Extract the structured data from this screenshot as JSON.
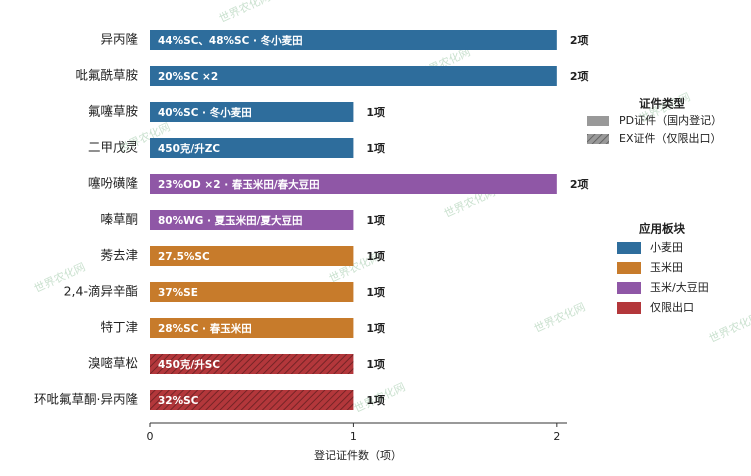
{
  "chart_data": {
    "type": "bar",
    "orientation": "horizontal",
    "categories": [
      "异丙隆",
      "吡氟酰草胺",
      "氟噻草胺",
      "二甲戊灵",
      "噻吩磺隆",
      "嗪草酮",
      "莠去津",
      "2,4-滴异辛酯",
      "特丁津",
      "溴嘧草松",
      "环吡氟草酮·异丙隆"
    ],
    "values": [
      2,
      2,
      1,
      1,
      2,
      1,
      1,
      1,
      1,
      1,
      1
    ],
    "value_labels": [
      "2项",
      "2项",
      "1项",
      "1项",
      "2项",
      "1项",
      "1项",
      "1项",
      "1项",
      "1项",
      "1项"
    ],
    "bar_labels": [
      "44%SC、48%SC · 冬小麦田",
      "20%SC ×2",
      "40%SC · 冬小麦田",
      "450克/升ZC",
      "23%OD ×2 · 春玉米田/春大豆田",
      "80%WG · 夏玉米田/夏大豆田",
      "27.5%SC",
      "37%SE",
      "28%SC · 春玉米田",
      "450克/升SC",
      "32%SC"
    ],
    "sector": [
      0,
      0,
      0,
      0,
      2,
      2,
      1,
      1,
      1,
      3,
      3
    ],
    "license": [
      0,
      0,
      0,
      0,
      0,
      0,
      0,
      0,
      0,
      1,
      1
    ],
    "x_label": "登记证件数（项）",
    "xlim": [
      0,
      2.05
    ],
    "xticks": [
      0,
      1,
      2
    ],
    "license_legend": {
      "title": "证件类型",
      "entries": [
        {
          "name": "PD证件（国内登记）",
          "hatched": false
        },
        {
          "name": "EX证件（仅限出口）",
          "hatched": true
        }
      ]
    },
    "sector_legend": {
      "title": "应用板块",
      "entries": [
        {
          "name": "小麦田",
          "color": "#2e6d9c"
        },
        {
          "name": "玉米田",
          "color": "#c77b2b"
        },
        {
          "name": "玉米/大豆田",
          "color": "#8f57a6"
        },
        {
          "name": "仅限出口",
          "color": "#b3373b"
        }
      ]
    },
    "watermark": "世界农化网"
  }
}
